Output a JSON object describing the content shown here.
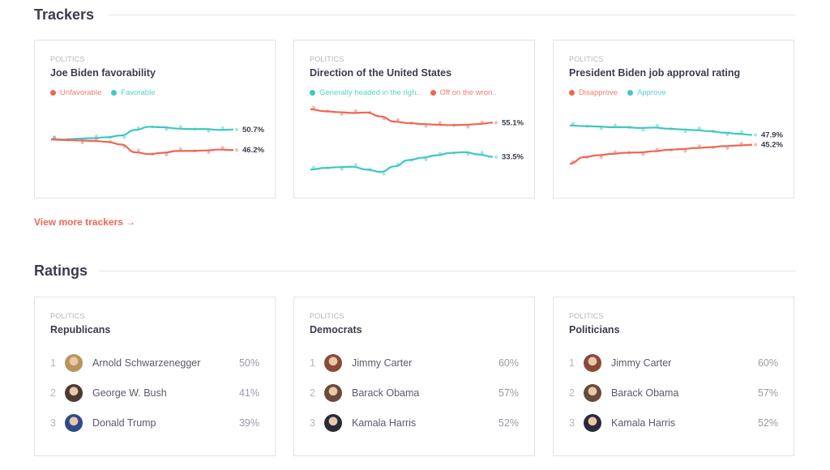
{
  "trackers": {
    "title": "Trackers",
    "view_more": "View more trackers →",
    "cards": [
      {
        "category": "POLITICS",
        "title": "Joe Biden favorability",
        "legend": [
          {
            "label": "Unfavorable",
            "color": "#ef6654"
          },
          {
            "label": "Favorable",
            "color": "#3cc8c4"
          }
        ],
        "chart_data": {
          "type": "line",
          "ylim": [
            40,
            56
          ],
          "series": [
            {
              "name": "Favorable",
              "color": "#3cc8c4",
              "final_label": "50.7%",
              "values": [
                48.6,
                48.5,
                48.7,
                48.8,
                49.0,
                49.4,
                50.6,
                51.3,
                51.2,
                50.9,
                50.8,
                50.8,
                50.6,
                50.7
              ]
            },
            {
              "name": "Unfavorable",
              "color": "#ef6654",
              "final_label": "46.2%",
              "values": [
                48.5,
                48.4,
                48.3,
                48.2,
                48.0,
                47.4,
                45.7,
                45.3,
                45.6,
                46.0,
                46.0,
                46.1,
                46.3,
                46.2
              ]
            }
          ]
        }
      },
      {
        "category": "POLITICS",
        "title": "Direction of the United States",
        "legend": [
          {
            "label": "Generally headed in the righ..",
            "color": "#3cc8c4"
          },
          {
            "label": "Off on the wron..",
            "color": "#ef6654"
          }
        ],
        "chart_data": {
          "type": "line",
          "ylim": [
            20,
            66
          ],
          "series": [
            {
              "name": "Off on the wrong track",
              "color": "#ef6654",
              "final_label": "55.1%",
              "values": [
                63.5,
                62.3,
                61.7,
                61.2,
                61.5,
                59.0,
                55.7,
                54.8,
                54.2,
                53.8,
                53.5,
                53.7,
                54.2,
                55.1
              ]
            },
            {
              "name": "Generally headed in the right direction",
              "color": "#3cc8c4",
              "final_label": "33.5%",
              "values": [
                25.5,
                26.5,
                27.0,
                27.3,
                25.5,
                24.0,
                27.5,
                31.5,
                33.0,
                34.5,
                36.0,
                36.5,
                35.0,
                33.5
              ]
            }
          ]
        }
      },
      {
        "category": "POLITICS",
        "title": "President Biden job approval rating",
        "legend": [
          {
            "label": "Disapprove",
            "color": "#ef6654"
          },
          {
            "label": "Approve",
            "color": "#3cc8c4"
          }
        ],
        "chart_data": {
          "type": "line",
          "ylim": [
            36,
            56
          ],
          "series": [
            {
              "name": "Approve",
              "color": "#3cc8c4",
              "final_label": "47.9%",
              "values": [
                50.5,
                50.3,
                50.2,
                50.0,
                50.0,
                49.8,
                49.9,
                49.6,
                49.4,
                49.2,
                48.9,
                48.5,
                48.2,
                47.9
              ]
            },
            {
              "name": "Disapprove",
              "color": "#ef6654",
              "final_label": "45.2%",
              "values": [
                40.0,
                41.8,
                42.3,
                42.7,
                43.0,
                43.1,
                43.4,
                43.8,
                44.0,
                44.3,
                44.5,
                44.8,
                45.0,
                45.2
              ]
            }
          ]
        }
      }
    ]
  },
  "ratings": {
    "title": "Ratings",
    "cards": [
      {
        "category": "POLITICS",
        "title": "Republicans",
        "items": [
          {
            "rank": "1",
            "name": "Arnold Schwarzenegger",
            "pct": "50%",
            "avatar": "#b8955a"
          },
          {
            "rank": "2",
            "name": "George W. Bush",
            "pct": "41%",
            "avatar": "#4a3a32"
          },
          {
            "rank": "3",
            "name": "Donald Trump",
            "pct": "39%",
            "avatar": "#2f4a8a"
          }
        ]
      },
      {
        "category": "POLITICS",
        "title": "Democrats",
        "items": [
          {
            "rank": "1",
            "name": "Jimmy Carter",
            "pct": "60%",
            "avatar": "#8a4a3a"
          },
          {
            "rank": "2",
            "name": "Barack Obama",
            "pct": "57%",
            "avatar": "#6a4a3a"
          },
          {
            "rank": "3",
            "name": "Kamala Harris",
            "pct": "52%",
            "avatar": "#2a2a3a"
          }
        ]
      },
      {
        "category": "POLITICS",
        "title": "Politicians",
        "items": [
          {
            "rank": "1",
            "name": "Jimmy Carter",
            "pct": "60%",
            "avatar": "#8a4a3a"
          },
          {
            "rank": "2",
            "name": "Barack Obama",
            "pct": "57%",
            "avatar": "#6a4a3a"
          },
          {
            "rank": "3",
            "name": "Kamala Harris",
            "pct": "52%",
            "avatar": "#2a2a3a"
          }
        ]
      }
    ]
  }
}
